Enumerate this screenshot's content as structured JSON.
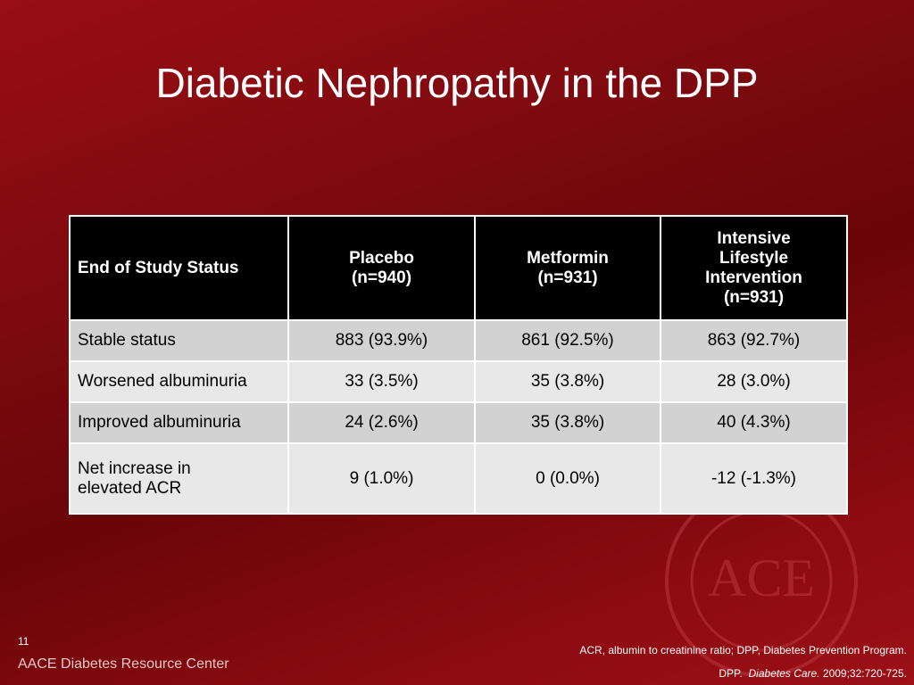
{
  "slide": {
    "title": "Diabetic Nephropathy in the DPP",
    "number": "11",
    "brand": "AACE Diabetes Resource Center",
    "seal": "ACE"
  },
  "table": {
    "header": [
      "End of Study Status",
      "Placebo\n(n=940)",
      "Metformin\n(n=931)",
      "Intensive\nLifestyle\nIntervention\n(n=931)"
    ],
    "rows": [
      [
        "Stable status",
        "883 (93.9%)",
        "861 (92.5%)",
        "863 (92.7%)"
      ],
      [
        "Worsened albuminuria",
        "33 (3.5%)",
        "35 (3.8%)",
        "28 (3.0%)"
      ],
      [
        "Improved albuminuria",
        "24 (2.6%)",
        "35 (3.8%)",
        "40 (4.3%)"
      ],
      [
        "Net increase in\nelevated ACR",
        "9 (1.0%)",
        "0 (0.0%)",
        "-12 (-1.3%)"
      ]
    ]
  },
  "footnote": {
    "abbreviations": "ACR, albumin to creatinine ratio; DPP, Diabetes Prevention Program.",
    "citation": {
      "author": "DPP.",
      "journal": "Diabetes Care.",
      "details": "2009;32:720-725."
    }
  }
}
